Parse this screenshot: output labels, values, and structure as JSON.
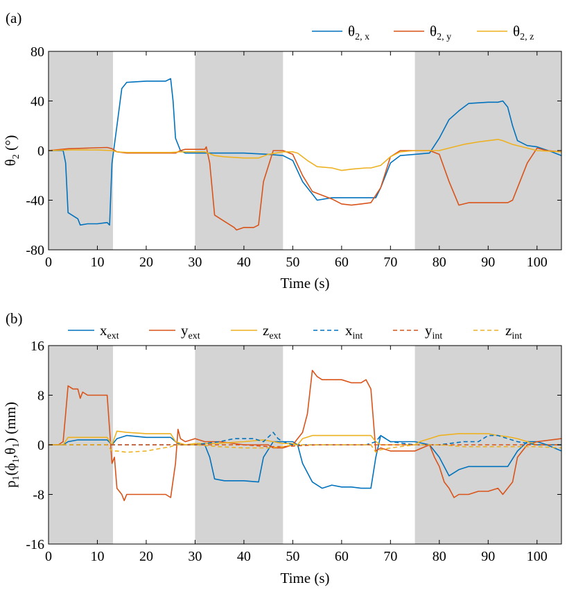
{
  "chart_data": [
    {
      "panel_label": "(a)",
      "type": "line",
      "xlabel": "Time (s)",
      "ylabel": "θ",
      "ylabel_sub": "2",
      "ylabel_unit": " (°)",
      "xlim": [
        0,
        105
      ],
      "ylim": [
        -80,
        80
      ],
      "xticks": [
        "0",
        "10",
        "20",
        "30",
        "40",
        "50",
        "60",
        "70",
        "80",
        "90",
        "100"
      ],
      "yticks": [
        "-80",
        "-40",
        "0",
        "40",
        "80"
      ],
      "shaded_intervals": [
        [
          0,
          13.2
        ],
        [
          30,
          48
        ],
        [
          75,
          105
        ]
      ],
      "legend": [
        {
          "base": "θ",
          "sub": "2, x"
        },
        {
          "base": "θ",
          "sub": "2, y"
        },
        {
          "base": "θ",
          "sub": "2, z"
        }
      ],
      "series": [
        {
          "name": "θ2,x",
          "color": "#0072BD",
          "dash": "solid",
          "x": [
            0,
            3,
            3.5,
            4,
            6,
            6.5,
            8,
            10,
            12,
            12.5,
            13,
            14,
            15,
            16,
            20,
            24,
            25,
            25.5,
            26,
            27,
            28,
            30,
            35,
            40,
            45,
            48,
            50,
            52,
            55,
            58,
            60,
            63,
            66,
            67,
            68,
            70,
            72,
            75,
            78,
            80,
            82,
            84,
            86,
            90,
            92,
            93,
            94,
            95,
            96,
            98,
            100,
            103,
            105
          ],
          "y": [
            0,
            0,
            -10,
            -50,
            -55,
            -60,
            -59,
            -59,
            -58,
            -60,
            -10,
            20,
            50,
            55,
            56,
            56,
            58,
            40,
            10,
            0,
            -2,
            -2,
            -2,
            -2,
            -3,
            -4,
            -8,
            -25,
            -40,
            -38,
            -38,
            -38,
            -38,
            -38,
            -30,
            -10,
            -4,
            -3,
            -2,
            10,
            25,
            32,
            38,
            39,
            39,
            40,
            35,
            20,
            8,
            4,
            3,
            -1,
            -4
          ]
        },
        {
          "name": "θ2,y",
          "color": "#D95319",
          "dash": "solid",
          "x": [
            0,
            4,
            8,
            12,
            13,
            14,
            16,
            20,
            25,
            26,
            27,
            28,
            30,
            32,
            32.3,
            33,
            34,
            36,
            38,
            38.5,
            40,
            42,
            43,
            44,
            46,
            48,
            50,
            52,
            54,
            56,
            58,
            60,
            62,
            64,
            66,
            68,
            70,
            72,
            75,
            78,
            80,
            82,
            84,
            86,
            90,
            94,
            95,
            96,
            98,
            100,
            102,
            105
          ],
          "y": [
            0,
            1.5,
            2,
            2.5,
            1.5,
            -1,
            -2,
            -2,
            -2,
            -2,
            0,
            1,
            1,
            1,
            3,
            -10,
            -52,
            -57,
            -62,
            -64,
            -62,
            -62,
            -60,
            -25,
            0,
            0,
            -3,
            -20,
            -33,
            -36,
            -39,
            -43,
            -44,
            -43,
            -42,
            -30,
            -5,
            0,
            0,
            0,
            -3,
            -25,
            -44,
            -42,
            -42,
            -42,
            -40,
            -30,
            -10,
            2,
            0,
            -1
          ]
        },
        {
          "name": "θ2,z",
          "color": "#EDB120",
          "dash": "solid",
          "x": [
            0,
            5,
            10,
            13,
            14,
            16,
            20,
            25,
            27,
            30,
            32,
            34,
            36,
            40,
            43,
            45,
            48,
            50,
            51,
            53,
            55,
            58,
            60,
            62,
            65,
            66,
            68,
            70,
            72,
            75,
            78,
            80,
            82,
            85,
            88,
            90,
            92,
            93,
            95,
            98,
            100,
            105
          ],
          "y": [
            0,
            0.5,
            0.5,
            0,
            -1,
            -1.5,
            -1.5,
            -1.5,
            -1,
            -1,
            -1,
            -4,
            -5,
            -6,
            -6,
            -3,
            -1,
            -1,
            -2,
            -8,
            -13,
            -14,
            -16,
            -15,
            -14,
            -14,
            -12,
            -5,
            -1,
            0,
            0,
            0,
            2,
            5,
            7,
            8,
            9,
            8,
            5,
            2,
            0,
            -1
          ]
        }
      ]
    },
    {
      "panel_label": "(b)",
      "type": "line",
      "xlabel": "Time (s)",
      "ylabel_parts": [
        "p",
        "1",
        "(ϕ",
        "1",
        ",θ",
        "1",
        ") (mm)"
      ],
      "xlim": [
        0,
        105
      ],
      "ylim": [
        -16,
        16
      ],
      "xticks": [
        "0",
        "10",
        "20",
        "30",
        "40",
        "50",
        "60",
        "70",
        "80",
        "90",
        "100"
      ],
      "yticks": [
        "-16",
        "-8",
        "0",
        "8",
        "16"
      ],
      "shaded_intervals": [
        [
          0,
          13.2
        ],
        [
          30,
          48
        ],
        [
          75,
          105
        ]
      ],
      "legend": [
        {
          "base": "x",
          "sub": "ext"
        },
        {
          "base": "y",
          "sub": "ext"
        },
        {
          "base": "z",
          "sub": "ext"
        },
        {
          "base": "x",
          "sub": "int"
        },
        {
          "base": "y",
          "sub": "int"
        },
        {
          "base": "z",
          "sub": "int"
        }
      ],
      "series": [
        {
          "name": "x_ext",
          "color": "#0072BD",
          "dash": "solid",
          "x": [
            0,
            3,
            4,
            6,
            8,
            10,
            12,
            13,
            14,
            16,
            20,
            25,
            26,
            27,
            28,
            30,
            32,
            33,
            34,
            36,
            40,
            43,
            44,
            46,
            48,
            50,
            51,
            52,
            54,
            56,
            58,
            60,
            62,
            64,
            66,
            67,
            68,
            70,
            72,
            75,
            78,
            80,
            82,
            84,
            86,
            90,
            92,
            94,
            96,
            98,
            100,
            102,
            105
          ],
          "y": [
            0,
            0,
            0.5,
            0.8,
            0.8,
            0.8,
            0.8,
            0,
            1,
            1.5,
            1.2,
            1.2,
            0.5,
            0,
            0,
            0,
            0,
            -2,
            -5.5,
            -5.8,
            -5.8,
            -6,
            -2,
            0.5,
            0.5,
            0.5,
            0,
            -3,
            -6,
            -7,
            -6.5,
            -6.8,
            -6.8,
            -7,
            -7,
            -2,
            1.5,
            0.5,
            0.5,
            0.5,
            0,
            -2,
            -5,
            -4,
            -3.5,
            -3.5,
            -3.5,
            -3.5,
            -1,
            0.5,
            0.5,
            0,
            -1
          ]
        },
        {
          "name": "y_ext",
          "color": "#D95319",
          "dash": "solid",
          "x": [
            0,
            2,
            3,
            3.5,
            4,
            5,
            6,
            6.5,
            7,
            8,
            10,
            12,
            13,
            13.5,
            14,
            15,
            15.5,
            16,
            20,
            24,
            25,
            26,
            26.5,
            27,
            28,
            30,
            32,
            35,
            40,
            44,
            45,
            46,
            48,
            50,
            52,
            53,
            54,
            55,
            56,
            58,
            60,
            62,
            64,
            65,
            66,
            67,
            68,
            70,
            72,
            75,
            78,
            79,
            80,
            81,
            82,
            83,
            84,
            86,
            88,
            90,
            92,
            93,
            95,
            96,
            97,
            98,
            100,
            105
          ],
          "y": [
            0,
            0,
            0.5,
            5,
            9.5,
            9,
            9,
            7.5,
            8.5,
            8,
            8,
            8,
            -3,
            -2,
            -7,
            -8,
            -9,
            -8,
            -8,
            -8,
            -8.5,
            -3,
            2.5,
            1,
            0.5,
            1,
            0.5,
            0.5,
            0,
            0,
            0,
            -0.5,
            -0.5,
            0,
            2,
            5,
            12,
            11,
            10.5,
            10.5,
            10.5,
            10,
            10,
            10.5,
            9,
            -1,
            -0.5,
            -1,
            -1,
            -1,
            0,
            -2,
            -3.5,
            -6,
            -7,
            -8.5,
            -8,
            -8,
            -7.5,
            -7.5,
            -7,
            -8,
            -6,
            -2,
            -1,
            0,
            0.5,
            1
          ]
        },
        {
          "name": "z_ext",
          "color": "#EDB120",
          "dash": "solid",
          "x": [
            0,
            2,
            3,
            4,
            6,
            8,
            10,
            12,
            13,
            14,
            16,
            20,
            25,
            26,
            28,
            30,
            34,
            40,
            44,
            46,
            48,
            50,
            51,
            52,
            54,
            56,
            60,
            64,
            66,
            67,
            68,
            70,
            75,
            76,
            78,
            80,
            84,
            86,
            90,
            92,
            94,
            96,
            98,
            100,
            105
          ],
          "y": [
            0,
            0,
            0,
            1.2,
            1.2,
            1.2,
            1.2,
            1.2,
            0,
            2.2,
            2,
            1.8,
            1.8,
            0.5,
            0,
            0.2,
            0.2,
            0.5,
            0.8,
            0.5,
            0.2,
            0.2,
            0,
            1,
            1.5,
            1.5,
            1.5,
            1.5,
            1.5,
            0.5,
            0,
            0,
            0,
            0.5,
            1,
            1.5,
            1.8,
            1.8,
            1.8,
            1.5,
            1.3,
            1,
            0.5,
            0,
            0
          ]
        },
        {
          "name": "x_int",
          "color": "#0072BD",
          "dash": "dashed",
          "x": [
            0,
            10,
            13,
            20,
            30,
            35,
            38,
            42,
            44,
            46,
            47,
            48,
            50,
            55,
            60,
            65,
            67,
            68,
            70,
            75,
            80,
            85,
            88,
            90,
            92,
            94,
            96,
            100,
            105
          ],
          "y": [
            0,
            0,
            0,
            0,
            0,
            0.5,
            1,
            1,
            0.5,
            2,
            1,
            0.5,
            0,
            0,
            0,
            0,
            0.5,
            1.5,
            0.5,
            0,
            0,
            0.5,
            0.5,
            1.5,
            1.5,
            1,
            0.5,
            0,
            0
          ]
        },
        {
          "name": "y_int",
          "color": "#D95319",
          "dash": "dashed",
          "x": [
            0,
            10,
            13,
            20,
            30,
            35,
            40,
            45,
            48,
            50,
            55,
            60,
            65,
            70,
            75,
            80,
            85,
            90,
            95,
            100,
            105
          ],
          "y": [
            0,
            0,
            0,
            0,
            0,
            0,
            0,
            -0.3,
            -0.3,
            -0.2,
            0,
            0,
            0,
            0,
            0,
            0,
            0,
            0,
            0,
            0,
            0
          ]
        },
        {
          "name": "z_int",
          "color": "#EDB120",
          "dash": "dashed",
          "x": [
            0,
            10,
            12,
            13,
            14,
            16,
            20,
            25,
            26,
            30,
            35,
            40,
            45,
            48,
            50,
            55,
            60,
            65,
            66,
            67,
            68,
            70,
            75,
            80,
            85,
            90,
            95,
            100,
            105
          ],
          "y": [
            0,
            0,
            0,
            -1,
            -1,
            -1.2,
            -1,
            -0.3,
            0,
            0,
            -0.3,
            -0.5,
            -0.5,
            -0.3,
            0,
            0,
            0,
            0,
            0,
            -1.2,
            -0.8,
            -0.5,
            0,
            0,
            -0.3,
            -0.3,
            -0.3,
            -0.3,
            -0.5
          ]
        }
      ]
    }
  ]
}
